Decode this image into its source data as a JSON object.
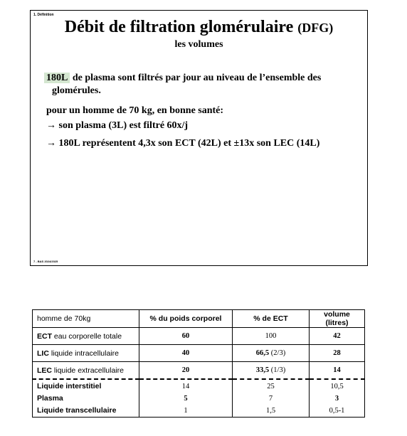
{
  "slide": {
    "section": "1. Définition",
    "title_main": "Débit de filtration glomérulaire",
    "title_abbr": "(DFG)",
    "subtitle": "les volumes",
    "highlight": "180L",
    "para1_rest": " de plasma sont filtrés par jour au niveau de l’ensemble des",
    "para1_line2": "glomérules.",
    "para2": "pour un homme de 70 kg, en bonne santé:",
    "para3": "→ son plasma (3L) est filtré 60x/j",
    "para4": "→ 180L représentent 4,3x son ECT (42L) et ±13x son LEC (14L)",
    "footer": "7 - BAS 2024/2025"
  },
  "table": {
    "headers": [
      "homme de 70kg",
      "% du poids corporel",
      "% de ECT",
      "volume (litres)"
    ],
    "rows": [
      {
        "abbr": "ECT",
        "name": " eau corporelle totale",
        "pct_weight": "60",
        "pct_ect": "100",
        "pct_ect_extra": "",
        "volume": "42"
      },
      {
        "abbr": "LIC",
        "name": " liquide intracellulaire",
        "pct_weight": "40",
        "pct_ect": "66,5",
        "pct_ect_extra": " (2/3)",
        "volume": "28"
      },
      {
        "abbr": "LEC",
        "name": " liquide extracellulaire",
        "pct_weight": "20",
        "pct_ect": "33,5",
        "pct_ect_extra": " (1/3)",
        "volume": "14"
      }
    ],
    "sub_rows": [
      {
        "name": "Liquide  interstitiel",
        "pct_weight": "14",
        "pct_ect": "25",
        "volume": "10,5"
      },
      {
        "name": "Plasma",
        "pct_weight": "5",
        "pct_ect": "7",
        "volume": "3"
      },
      {
        "name": "Liquide transcellulaire",
        "pct_weight": "1",
        "pct_ect": "1,5",
        "volume": "0,5-1"
      }
    ]
  }
}
